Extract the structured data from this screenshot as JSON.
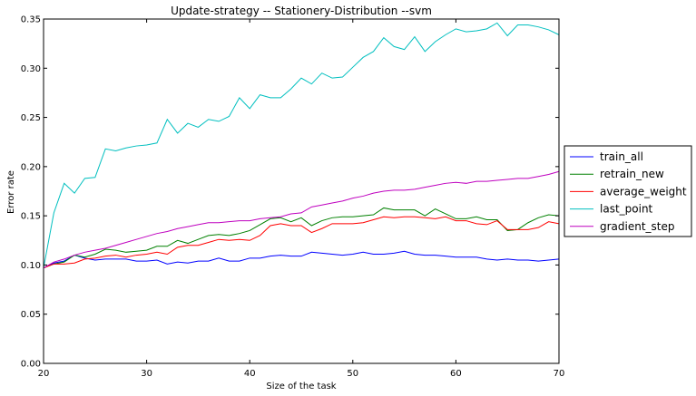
{
  "chart_data": {
    "type": "line",
    "title": "Update-strategy -- Stationery-Distribution --svm",
    "xlabel": "Size of the task",
    "ylabel": "Error rate",
    "xlim": [
      20,
      70
    ],
    "ylim": [
      0.0,
      0.35
    ],
    "xticks": [
      "20",
      "30",
      "40",
      "50",
      "60",
      "70"
    ],
    "yticks": [
      "0.00",
      "0.05",
      "0.10",
      "0.15",
      "0.20",
      "0.25",
      "0.30",
      "0.35"
    ],
    "grid": false,
    "legend_position": "outside-right",
    "x": [
      20,
      21,
      22,
      23,
      24,
      25,
      26,
      27,
      28,
      29,
      30,
      31,
      32,
      33,
      34,
      35,
      36,
      37,
      38,
      39,
      40,
      41,
      42,
      43,
      44,
      45,
      46,
      47,
      48,
      49,
      50,
      51,
      52,
      53,
      54,
      55,
      56,
      57,
      58,
      59,
      60,
      61,
      62,
      63,
      64,
      65,
      66,
      67,
      68,
      69,
      70
    ],
    "series": [
      {
        "name": "train_all",
        "color": "#0000ff",
        "values": [
          0.097,
          0.102,
          0.104,
          0.11,
          0.107,
          0.105,
          0.106,
          0.106,
          0.106,
          0.104,
          0.104,
          0.105,
          0.101,
          0.103,
          0.102,
          0.104,
          0.104,
          0.107,
          0.104,
          0.104,
          0.107,
          0.107,
          0.109,
          0.11,
          0.109,
          0.109,
          0.113,
          0.112,
          0.111,
          0.11,
          0.111,
          0.113,
          0.111,
          0.111,
          0.112,
          0.114,
          0.111,
          0.11,
          0.11,
          0.109,
          0.108,
          0.108,
          0.108,
          0.106,
          0.105,
          0.106,
          0.105,
          0.105,
          0.104,
          0.105,
          0.106
        ]
      },
      {
        "name": "retrain_new",
        "color": "#008000",
        "values": [
          0.097,
          0.101,
          0.103,
          0.11,
          0.108,
          0.111,
          0.116,
          0.115,
          0.113,
          0.114,
          0.115,
          0.119,
          0.119,
          0.125,
          0.122,
          0.126,
          0.13,
          0.131,
          0.13,
          0.132,
          0.135,
          0.141,
          0.147,
          0.148,
          0.144,
          0.148,
          0.14,
          0.145,
          0.148,
          0.149,
          0.149,
          0.15,
          0.151,
          0.158,
          0.156,
          0.156,
          0.156,
          0.15,
          0.157,
          0.152,
          0.147,
          0.147,
          0.149,
          0.146,
          0.146,
          0.135,
          0.136,
          0.143,
          0.148,
          0.151,
          0.15
        ]
      },
      {
        "name": "average_weight",
        "color": "#ff0000",
        "values": [
          0.097,
          0.101,
          0.101,
          0.102,
          0.106,
          0.107,
          0.109,
          0.11,
          0.108,
          0.11,
          0.111,
          0.113,
          0.111,
          0.118,
          0.12,
          0.12,
          0.123,
          0.126,
          0.125,
          0.126,
          0.125,
          0.13,
          0.14,
          0.142,
          0.14,
          0.14,
          0.133,
          0.137,
          0.142,
          0.142,
          0.142,
          0.143,
          0.146,
          0.149,
          0.148,
          0.149,
          0.149,
          0.148,
          0.147,
          0.149,
          0.145,
          0.145,
          0.142,
          0.141,
          0.145,
          0.136,
          0.136,
          0.136,
          0.138,
          0.144,
          0.142
        ]
      },
      {
        "name": "last_point",
        "color": "#00bfbf",
        "values": [
          0.097,
          0.153,
          0.183,
          0.173,
          0.188,
          0.189,
          0.218,
          0.216,
          0.219,
          0.221,
          0.222,
          0.224,
          0.248,
          0.234,
          0.244,
          0.24,
          0.248,
          0.246,
          0.251,
          0.27,
          0.259,
          0.273,
          0.27,
          0.27,
          0.279,
          0.29,
          0.284,
          0.295,
          0.29,
          0.291,
          0.301,
          0.311,
          0.317,
          0.331,
          0.322,
          0.319,
          0.332,
          0.317,
          0.327,
          0.334,
          0.34,
          0.337,
          0.338,
          0.34,
          0.346,
          0.333,
          0.344,
          0.344,
          0.342,
          0.339,
          0.334
        ]
      },
      {
        "name": "gradient_step",
        "color": "#bf00bf",
        "values": [
          0.097,
          0.103,
          0.106,
          0.11,
          0.113,
          0.115,
          0.117,
          0.12,
          0.123,
          0.126,
          0.129,
          0.132,
          0.134,
          0.137,
          0.139,
          0.141,
          0.143,
          0.143,
          0.144,
          0.145,
          0.145,
          0.147,
          0.148,
          0.149,
          0.152,
          0.153,
          0.159,
          0.161,
          0.163,
          0.165,
          0.168,
          0.17,
          0.173,
          0.175,
          0.176,
          0.176,
          0.177,
          0.179,
          0.181,
          0.183,
          0.184,
          0.183,
          0.185,
          0.185,
          0.186,
          0.187,
          0.188,
          0.188,
          0.19,
          0.192,
          0.195
        ]
      }
    ]
  }
}
